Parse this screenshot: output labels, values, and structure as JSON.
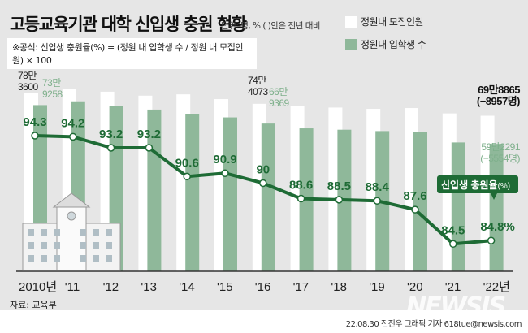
{
  "title": "고등교육기관 대학 신입생 충원 현황",
  "unit": "단위: 명, % ( )안은 전년 대비",
  "formula": "※공식: 신입생 충원율(%) = (정원 내 입학생 수 / 정원 내 모집인원) × 100",
  "source": "자료: 교육부",
  "credit": "22.08.30 전진우 그래픽 기자 618tue@newsis.com",
  "logo": "NEWSIS",
  "chart_data": {
    "type": "bar+line",
    "categories": [
      "2010년",
      "'11",
      "'12",
      "'13",
      "'14",
      "'15",
      "'16",
      "'17",
      "'18",
      "'19",
      "'20",
      "'21",
      "'22년"
    ],
    "ylim": [
      110000,
      800000
    ],
    "series": [
      {
        "name": "정원내 모집인원",
        "type": "bar",
        "color": "#ffffff",
        "values": [
          783600,
          800000,
          790000,
          775000,
          780000,
          762000,
          744073,
          735000,
          730000,
          725000,
          728000,
          707822,
          698865
        ]
      },
      {
        "name": "정원내 입학생 수",
        "type": "bar",
        "color": "#8fb89a",
        "values": [
          739258,
          753600,
          736300,
          722300,
          706700,
          692700,
          669369,
          651200,
          646100,
          640900,
          637700,
          597845,
          592291
        ]
      },
      {
        "name": "신입생 충원율(%)",
        "type": "line",
        "color": "#1e6b35",
        "values": [
          94.3,
          94.2,
          93.2,
          93.2,
          90.6,
          90.9,
          90,
          88.6,
          88.5,
          88.4,
          87.6,
          84.5,
          84.8
        ]
      }
    ],
    "data_labels": [
      "94.3",
      "94.2",
      "93.2",
      "93.2",
      "90.6",
      "90.9",
      "90",
      "88.6",
      "88.5",
      "88.4",
      "87.6",
      "84.5",
      "84.8%"
    ],
    "annotations": {
      "w2010": [
        "78만",
        "3600"
      ],
      "g2010": [
        "73만",
        "9258"
      ],
      "w2016": [
        "74만",
        "4073"
      ],
      "g2016": [
        "66만",
        "9369"
      ],
      "w2022": [
        "69만8865",
        "(−8957명)"
      ],
      "g2022": [
        "59만2291",
        "(−5554명)"
      ]
    },
    "line_label": "신입생 충원율",
    "line_label_unit": "(%)"
  }
}
